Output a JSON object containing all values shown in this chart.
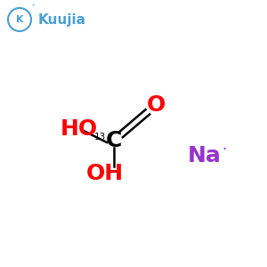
{
  "background_color": "#ffffff",
  "logo_text": "Kuujia",
  "logo_color": "#4a9fd4",
  "bond_color": "#000000",
  "atom_color_red": "#ff0000",
  "atom_color_black": "#000000",
  "atom_color_purple": "#9933cc",
  "isotope_label": "13",
  "C_label": "C",
  "HO_label": "HO",
  "O_label": "O",
  "OH_label": "OH",
  "Na_label": "Na",
  "Na_dot": "·",
  "figsize": [
    3.0,
    3.0
  ],
  "dpi": 100
}
